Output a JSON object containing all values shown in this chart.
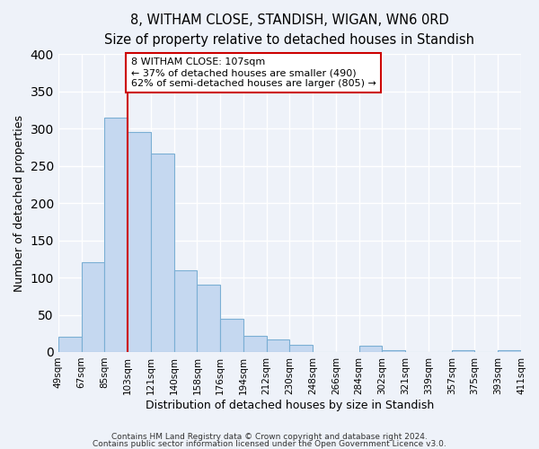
{
  "title": "8, WITHAM CLOSE, STANDISH, WIGAN, WN6 0RD",
  "subtitle": "Size of property relative to detached houses in Standish",
  "xlabel": "Distribution of detached houses by size in Standish",
  "ylabel": "Number of detached properties",
  "bar_values": [
    20,
    120,
    315,
    295,
    267,
    110,
    90,
    44,
    22,
    17,
    10,
    0,
    0,
    8,
    2,
    0,
    0,
    2,
    0,
    2
  ],
  "bar_labels": [
    "49sqm",
    "67sqm",
    "85sqm",
    "103sqm",
    "121sqm",
    "140sqm",
    "158sqm",
    "176sqm",
    "194sqm",
    "212sqm",
    "230sqm",
    "248sqm",
    "266sqm",
    "284sqm",
    "302sqm",
    "321sqm",
    "339sqm",
    "357sqm",
    "375sqm",
    "393sqm",
    "411sqm"
  ],
  "bar_color": "#c5d8f0",
  "bar_edge_color": "#7bafd4",
  "annotation_box_color": "#ffffff",
  "annotation_border_color": "#cc0000",
  "annotation_line_color": "#cc0000",
  "annotation_text_line1": "8 WITHAM CLOSE: 107sqm",
  "annotation_text_line2": "← 37% of detached houses are smaller (490)",
  "annotation_text_line3": "62% of semi-detached houses are larger (805) →",
  "vline_x": 3.0,
  "ylim": [
    0,
    400
  ],
  "footnote1": "Contains HM Land Registry data © Crown copyright and database right 2024.",
  "footnote2": "Contains public sector information licensed under the Open Government Licence v3.0.",
  "background_color": "#eef2f9",
  "grid_color": "#ffffff",
  "title_fontsize": 10.5,
  "subtitle_fontsize": 9,
  "ylabel_fontsize": 9,
  "xlabel_fontsize": 9,
  "tick_fontsize": 7.5
}
